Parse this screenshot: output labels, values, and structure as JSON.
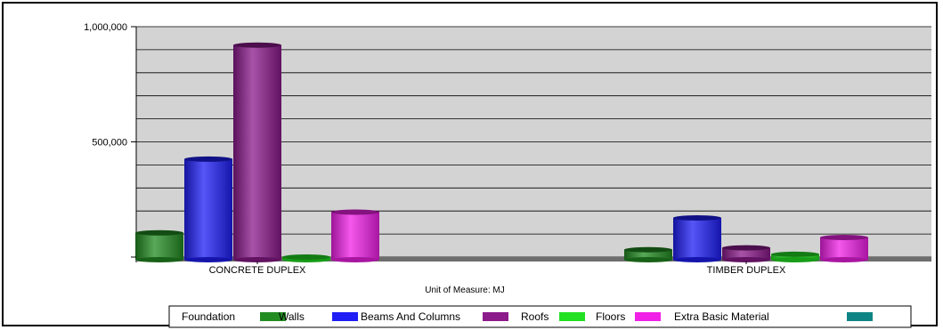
{
  "chart_data": {
    "type": "bar",
    "categories": [
      "CONCRETE DUPLEX",
      "TIMBER DUPLEX"
    ],
    "series": [
      {
        "name": "Foundation",
        "color": "#228B22",
        "values": [
          105000,
          32000
        ]
      },
      {
        "name": "Walls",
        "color": "#1E1EF5",
        "values": [
          425000,
          170000
        ]
      },
      {
        "name": "Beams And Columns",
        "color": "#8B1A8B",
        "values": [
          920000,
          40000
        ]
      },
      {
        "name": "Roofs",
        "color": "#22E022",
        "values": [
          0,
          12000
        ]
      },
      {
        "name": "Floors",
        "color": "#F020E6",
        "values": [
          195000,
          85000
        ]
      },
      {
        "name": "Extra Basic Material",
        "color": "#0E8484",
        "values": [
          0,
          0
        ]
      }
    ],
    "yticks": [
      {
        "value": 500000,
        "label": "500,000"
      },
      {
        "value": 1000000,
        "label": "1,000,000"
      }
    ],
    "ylim": [
      0,
      1000000
    ],
    "grid": true,
    "xlabel": "Unit of Measure: MJ",
    "legend_position": "bottom"
  }
}
